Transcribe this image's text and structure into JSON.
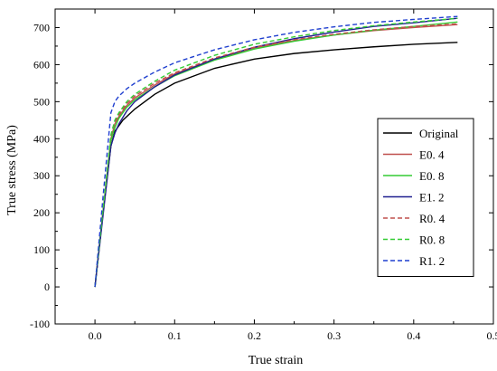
{
  "chart_data": {
    "type": "line",
    "xlabel": "True strain",
    "ylabel": "True stress (MPa)",
    "xlim": [
      -0.05,
      0.5
    ],
    "ylim": [
      -100,
      750
    ],
    "xticks": [
      "0.0",
      "0.1",
      "0.2",
      "0.3",
      "0.4",
      "0.5"
    ],
    "xtick_values": [
      0.0,
      0.1,
      0.2,
      0.3,
      0.4,
      0.5
    ],
    "yticks": [
      "-100",
      "0",
      "100",
      "200",
      "300",
      "400",
      "500",
      "600",
      "700"
    ],
    "ytick_values": [
      -100,
      0,
      100,
      200,
      300,
      400,
      500,
      600,
      700
    ],
    "grid": false,
    "legend_position": "right",
    "series": [
      {
        "name": "Original",
        "color": "#000000",
        "dash": "solid",
        "x": [
          0.0,
          0.01,
          0.02,
          0.025,
          0.035,
          0.05,
          0.075,
          0.1,
          0.15,
          0.2,
          0.25,
          0.3,
          0.35,
          0.4,
          0.455
        ],
        "y": [
          0,
          200,
          380,
          420,
          450,
          480,
          520,
          550,
          590,
          615,
          630,
          640,
          648,
          655,
          660
        ]
      },
      {
        "name": "E0. 4",
        "color": "#c0504d",
        "dash": "solid",
        "x": [
          0.0,
          0.01,
          0.02,
          0.025,
          0.03,
          0.04,
          0.05,
          0.075,
          0.1,
          0.15,
          0.2,
          0.25,
          0.3,
          0.35,
          0.4,
          0.455
        ],
        "y": [
          0,
          200,
          400,
          440,
          460,
          490,
          510,
          545,
          575,
          615,
          645,
          665,
          680,
          692,
          700,
          708
        ]
      },
      {
        "name": "E0. 8",
        "color": "#33cc33",
        "dash": "solid",
        "x": [
          0.0,
          0.01,
          0.02,
          0.025,
          0.03,
          0.04,
          0.05,
          0.075,
          0.1,
          0.15,
          0.2,
          0.25,
          0.3,
          0.35,
          0.4,
          0.455
        ],
        "y": [
          0,
          200,
          395,
          430,
          455,
          485,
          505,
          540,
          570,
          612,
          642,
          663,
          680,
          693,
          703,
          715
        ]
      },
      {
        "name": "E1. 2",
        "color": "#1f1f8f",
        "dash": "solid",
        "x": [
          0.0,
          0.01,
          0.02,
          0.025,
          0.03,
          0.04,
          0.05,
          0.075,
          0.1,
          0.15,
          0.2,
          0.25,
          0.3,
          0.35,
          0.4,
          0.455
        ],
        "y": [
          0,
          190,
          380,
          415,
          440,
          475,
          500,
          540,
          572,
          615,
          647,
          670,
          688,
          703,
          713,
          725
        ]
      },
      {
        "name": "R0. 4",
        "color": "#c0504d",
        "dash": "dashed",
        "x": [
          0.0,
          0.01,
          0.02,
          0.025,
          0.03,
          0.04,
          0.05,
          0.075,
          0.1,
          0.15,
          0.2,
          0.25,
          0.3,
          0.35,
          0.4,
          0.455
        ],
        "y": [
          0,
          205,
          405,
          445,
          465,
          495,
          515,
          550,
          578,
          618,
          647,
          667,
          682,
          694,
          703,
          710
        ]
      },
      {
        "name": "R0. 8",
        "color": "#33cc33",
        "dash": "dashed",
        "x": [
          0.0,
          0.01,
          0.02,
          0.025,
          0.03,
          0.04,
          0.05,
          0.075,
          0.1,
          0.15,
          0.2,
          0.25,
          0.3,
          0.35,
          0.4,
          0.455
        ],
        "y": [
          0,
          205,
          410,
          450,
          470,
          500,
          520,
          555,
          585,
          625,
          655,
          675,
          692,
          705,
          715,
          725
        ]
      },
      {
        "name": "R1. 2",
        "color": "#1f3fcf",
        "dash": "dashed",
        "x": [
          0.0,
          0.01,
          0.02,
          0.025,
          0.03,
          0.04,
          0.05,
          0.075,
          0.1,
          0.15,
          0.2,
          0.25,
          0.3,
          0.35,
          0.4,
          0.455
        ],
        "y": [
          0,
          240,
          470,
          500,
          515,
          535,
          550,
          580,
          605,
          640,
          667,
          687,
          702,
          714,
          722,
          730
        ]
      }
    ]
  }
}
